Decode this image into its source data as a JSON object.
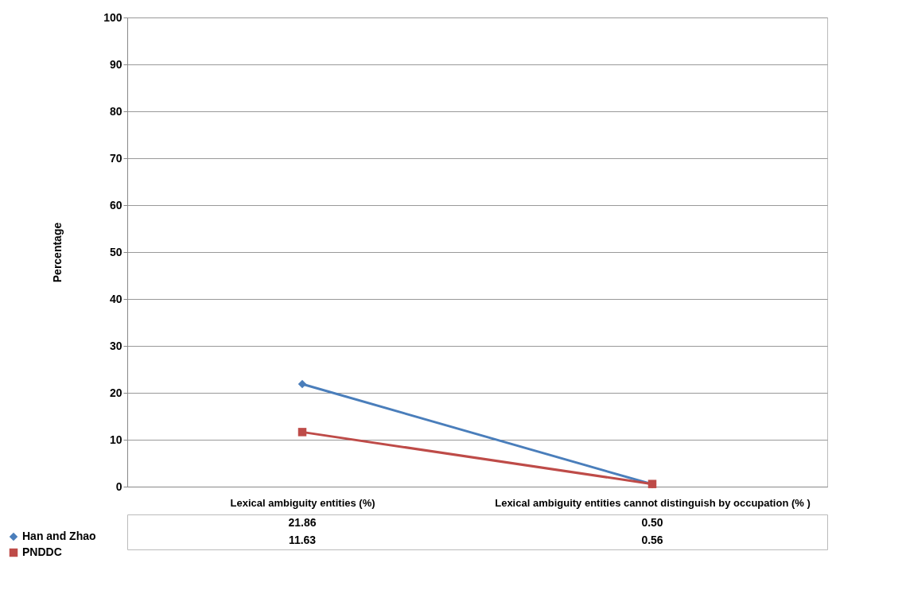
{
  "chart_data": {
    "type": "line",
    "ylabel": "Percentage",
    "categories": [
      "Lexical ambiguity entities (%)",
      "Lexical ambiguity entities cannot distinguish by occupation (% )"
    ],
    "series": [
      {
        "name": "Han and Zhao",
        "color": "#4a7ebb",
        "marker": "diamond",
        "values": [
          21.86,
          0.5
        ],
        "value_labels": [
          "21.86",
          "0.50"
        ]
      },
      {
        "name": "PNDDC",
        "color": "#be4b48",
        "marker": "square",
        "values": [
          11.63,
          0.56
        ],
        "value_labels": [
          "11.63",
          "0.56"
        ]
      }
    ],
    "ylim": [
      0,
      100
    ],
    "yticks": [
      0,
      10,
      20,
      30,
      40,
      50,
      60,
      70,
      80,
      90,
      100
    ],
    "grid": "y",
    "legend": "bottom left"
  }
}
